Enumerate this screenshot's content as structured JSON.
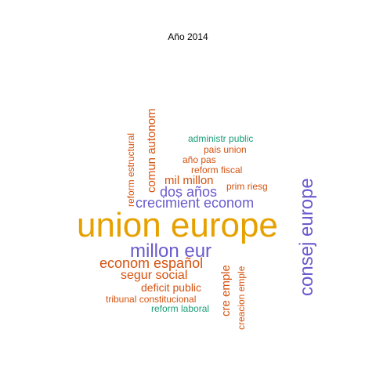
{
  "title": "Año 2014",
  "colors": {
    "gold": "#E6A100",
    "purple": "#6A5ACD",
    "orange": "#D5520F",
    "green": "#1B9E77"
  },
  "words": [
    {
      "text": "union europe",
      "color": "gold"
    },
    {
      "text": "consej europe",
      "color": "purple"
    },
    {
      "text": "millon eur",
      "color": "purple"
    },
    {
      "text": "crecimient econom",
      "color": "purple"
    },
    {
      "text": "dos años",
      "color": "purple"
    },
    {
      "text": "econom español",
      "color": "orange"
    },
    {
      "text": "mil millon",
      "color": "orange"
    },
    {
      "text": "segur social",
      "color": "orange"
    },
    {
      "text": "comun autonom",
      "color": "orange"
    },
    {
      "text": "reform estructural",
      "color": "orange"
    },
    {
      "text": "cre emple",
      "color": "orange"
    },
    {
      "text": "creacion emple",
      "color": "orange"
    },
    {
      "text": "deficit public",
      "color": "orange"
    },
    {
      "text": "tribunal constitucional",
      "color": "orange"
    },
    {
      "text": "reform fiscal",
      "color": "orange"
    },
    {
      "text": "prim riesg",
      "color": "orange"
    },
    {
      "text": "año pas",
      "color": "orange"
    },
    {
      "text": "pais union",
      "color": "orange"
    },
    {
      "text": "administr public",
      "color": "green"
    },
    {
      "text": "reform laboral",
      "color": "green"
    }
  ]
}
